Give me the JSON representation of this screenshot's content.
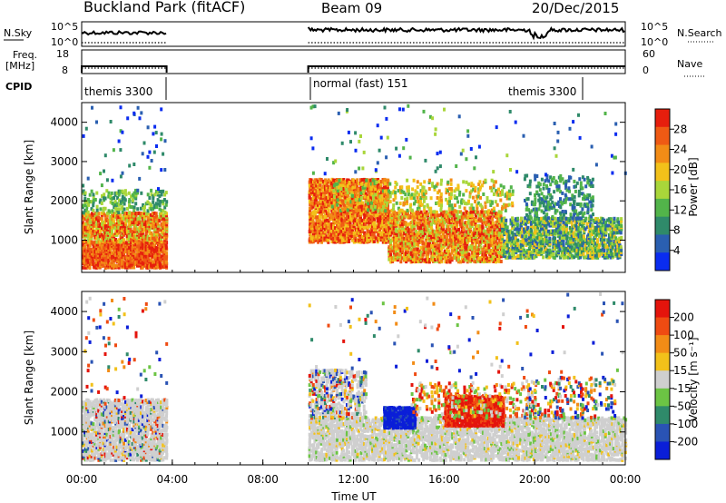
{
  "header": {
    "title": "Buckland Park (fitACF)",
    "beam": "Beam 09",
    "date": "20/Dec/2015"
  },
  "top_panels": {
    "nsky_label": "N.Sky",
    "nsky_ticks": [
      "10^5",
      "10^0"
    ],
    "nsearch_label": "N.Search",
    "nsearch_ticks": [
      "10^5",
      "10^0"
    ],
    "freq_label": "Freq.",
    "freq_unit": "[MHz]",
    "freq_ticks": [
      "18",
      "8"
    ],
    "nave_label": "Nave",
    "nave_ticks": [
      "60",
      "0"
    ],
    "cpid_label": "CPID",
    "cpid_segments": [
      "themis 3300",
      "normal (fast) 151",
      "themis 3300"
    ]
  },
  "chart_data": [
    {
      "type": "heatmap",
      "name": "power",
      "ylabel": "Slant Range [km]",
      "xlabel": "",
      "xlim": [
        "00:00",
        "24:00"
      ],
      "ylim": [
        180,
        4500
      ],
      "yticks": [
        "1000",
        "2000",
        "3000",
        "4000"
      ],
      "colorbar": {
        "label": "Power [dB]",
        "ticks": [
          "4",
          "8",
          "12",
          "16",
          "20",
          "24",
          "28"
        ],
        "range": [
          0,
          32
        ],
        "colors": [
          "#0a2cf0",
          "#2a5fb0",
          "#2f8a6a",
          "#52b44a",
          "#a9d63a",
          "#f2c11a",
          "#f28c16",
          "#ef5a14",
          "#e61e0d"
        ]
      },
      "data_gaps_hours": [
        [
          3.75,
          10.0
        ]
      ]
    },
    {
      "type": "heatmap",
      "name": "velocity",
      "ylabel": "Slant Range [km]",
      "xlabel": "Time UT",
      "xlim": [
        "00:00",
        "24:00"
      ],
      "xticks": [
        "00:00",
        "04:00",
        "08:00",
        "12:00",
        "16:00",
        "20:00",
        "00:00"
      ],
      "ylim": [
        180,
        4500
      ],
      "yticks": [
        "1000",
        "2000",
        "3000",
        "4000"
      ],
      "colorbar": {
        "label": "Velocity [m s⁻¹]",
        "ticks": [
          "200",
          "100",
          "50",
          "15",
          "-15",
          "-50",
          "-100",
          "-200"
        ],
        "range": [
          -250,
          250
        ],
        "colors": [
          "#0a1ed8",
          "#2a53b4",
          "#2f8a6a",
          "#6cc444",
          "#cfcfcf",
          "#f2c11a",
          "#f28c16",
          "#ef4b12",
          "#e4140c"
        ]
      },
      "data_gaps_hours": [
        [
          3.75,
          10.0
        ]
      ]
    }
  ]
}
